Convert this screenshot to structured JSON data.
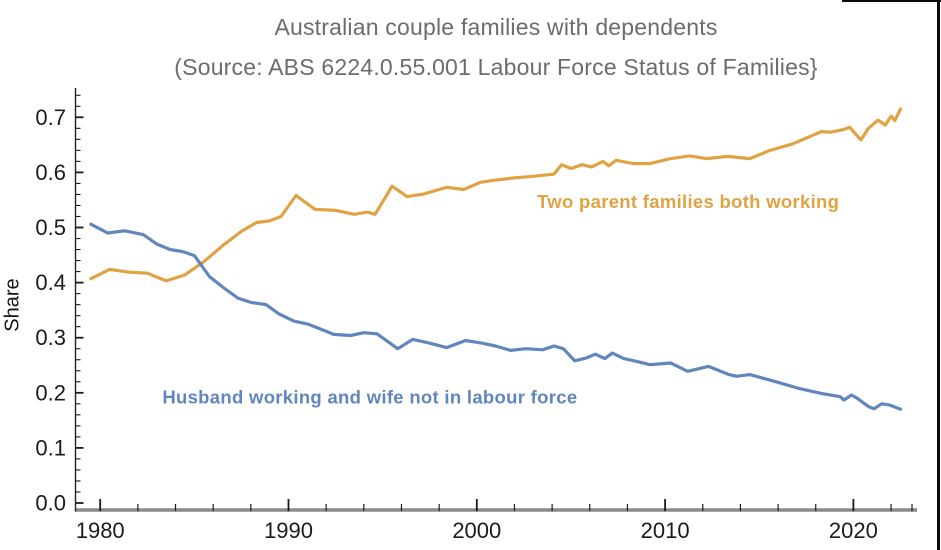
{
  "title": "Australian couple families with dependents",
  "subtitle": "(Source: ABS 6224.0.55.001 Labour Force Status of Families}",
  "colors": {
    "blue_series": "#6186BD",
    "orange_series": "#DFA344",
    "title_grey": "#6C6C6C",
    "axis_line_grey": "#8A8A8A",
    "tick_black": "#1A1A1A"
  },
  "chart_data": {
    "type": "line",
    "title": "Australian couple families with dependents",
    "subtitle": "(Source: ABS 6224.0.55.001 Labour Force Status of Families}",
    "xlabel": "",
    "ylabel": "Share",
    "xlim": [
      1978.6,
      2023.4
    ],
    "ylim": [
      -0.013,
      0.753
    ],
    "grid": false,
    "legend": "inline-annotations",
    "x_major_ticks": [
      1980,
      1990,
      2000,
      2010,
      2020
    ],
    "x_minor_tick_step_years": 2,
    "y_major_ticks": [
      0.0,
      0.1,
      0.2,
      0.3,
      0.4,
      0.5,
      0.6,
      0.7
    ],
    "y_minor_tick_step": 0.02,
    "y_tick_labels": [
      "0.0",
      "0.1",
      "0.2",
      "0.3",
      "0.4",
      "0.5",
      "0.6",
      "0.7"
    ],
    "x_tick_labels": [
      "1980",
      "1990",
      "2000",
      "2010",
      "2020"
    ],
    "series": [
      {
        "name": "Two parent families both working",
        "color": "#DFA344",
        "points": [
          [
            1979.5,
            0.407
          ],
          [
            1980.5,
            0.424
          ],
          [
            1981.5,
            0.419
          ],
          [
            1982.5,
            0.417
          ],
          [
            1983.5,
            0.403
          ],
          [
            1984.5,
            0.414
          ],
          [
            1985.5,
            0.438
          ],
          [
            1986.5,
            0.467
          ],
          [
            1987.5,
            0.493
          ],
          [
            1988.3,
            0.509
          ],
          [
            1989.0,
            0.512
          ],
          [
            1989.6,
            0.52
          ],
          [
            1990.4,
            0.558
          ],
          [
            1991.4,
            0.533
          ],
          [
            1992.5,
            0.531
          ],
          [
            1993.5,
            0.524
          ],
          [
            1994.2,
            0.528
          ],
          [
            1994.6,
            0.524
          ],
          [
            1995.5,
            0.575
          ],
          [
            1996.3,
            0.556
          ],
          [
            1997.2,
            0.561
          ],
          [
            1998.4,
            0.573
          ],
          [
            1999.3,
            0.569
          ],
          [
            2000.2,
            0.582
          ],
          [
            2001.0,
            0.586
          ],
          [
            2002.0,
            0.59
          ],
          [
            2003.0,
            0.593
          ],
          [
            2004.1,
            0.597
          ],
          [
            2004.5,
            0.614
          ],
          [
            2005.0,
            0.607
          ],
          [
            2005.6,
            0.614
          ],
          [
            2006.1,
            0.61
          ],
          [
            2006.7,
            0.62
          ],
          [
            2007.0,
            0.612
          ],
          [
            2007.4,
            0.622
          ],
          [
            2008.3,
            0.616
          ],
          [
            2009.2,
            0.616
          ],
          [
            2010.3,
            0.625
          ],
          [
            2011.3,
            0.63
          ],
          [
            2012.2,
            0.625
          ],
          [
            2013.3,
            0.629
          ],
          [
            2014.5,
            0.625
          ],
          [
            2015.5,
            0.639
          ],
          [
            2016.8,
            0.652
          ],
          [
            2018.3,
            0.674
          ],
          [
            2018.8,
            0.673
          ],
          [
            2019.5,
            0.678
          ],
          [
            2019.8,
            0.682
          ],
          [
            2020.4,
            0.659
          ],
          [
            2020.8,
            0.68
          ],
          [
            2021.3,
            0.695
          ],
          [
            2021.7,
            0.686
          ],
          [
            2022.0,
            0.702
          ],
          [
            2022.2,
            0.694
          ],
          [
            2022.5,
            0.715
          ]
        ]
      },
      {
        "name": "Husband working and wife not in labour force",
        "color": "#6186BD",
        "points": [
          [
            1979.5,
            0.506
          ],
          [
            1980.4,
            0.49
          ],
          [
            1981.3,
            0.494
          ],
          [
            1982.3,
            0.487
          ],
          [
            1983.0,
            0.47
          ],
          [
            1983.7,
            0.46
          ],
          [
            1984.4,
            0.456
          ],
          [
            1985.0,
            0.449
          ],
          [
            1985.8,
            0.411
          ],
          [
            1986.5,
            0.392
          ],
          [
            1987.3,
            0.372
          ],
          [
            1988.0,
            0.364
          ],
          [
            1988.8,
            0.36
          ],
          [
            1989.5,
            0.343
          ],
          [
            1990.3,
            0.33
          ],
          [
            1991.0,
            0.325
          ],
          [
            1991.6,
            0.317
          ],
          [
            1992.4,
            0.306
          ],
          [
            1993.3,
            0.304
          ],
          [
            1994.0,
            0.309
          ],
          [
            1994.7,
            0.307
          ],
          [
            1995.8,
            0.28
          ],
          [
            1996.6,
            0.297
          ],
          [
            1997.4,
            0.291
          ],
          [
            1998.4,
            0.282
          ],
          [
            1999.4,
            0.295
          ],
          [
            2000.3,
            0.29
          ],
          [
            2001.0,
            0.285
          ],
          [
            2001.8,
            0.277
          ],
          [
            2002.6,
            0.28
          ],
          [
            2003.5,
            0.278
          ],
          [
            2004.1,
            0.285
          ],
          [
            2004.6,
            0.28
          ],
          [
            2005.2,
            0.258
          ],
          [
            2005.8,
            0.263
          ],
          [
            2006.3,
            0.27
          ],
          [
            2006.8,
            0.262
          ],
          [
            2007.2,
            0.272
          ],
          [
            2007.8,
            0.262
          ],
          [
            2008.5,
            0.257
          ],
          [
            2009.2,
            0.251
          ],
          [
            2010.3,
            0.254
          ],
          [
            2011.2,
            0.239
          ],
          [
            2012.3,
            0.248
          ],
          [
            2013.4,
            0.233
          ],
          [
            2013.8,
            0.23
          ],
          [
            2014.5,
            0.233
          ],
          [
            2015.9,
            0.22
          ],
          [
            2017.1,
            0.208
          ],
          [
            2018.3,
            0.199
          ],
          [
            2019.3,
            0.193
          ],
          [
            2019.5,
            0.187
          ],
          [
            2019.9,
            0.196
          ],
          [
            2020.2,
            0.19
          ],
          [
            2020.8,
            0.175
          ],
          [
            2021.1,
            0.171
          ],
          [
            2021.5,
            0.18
          ],
          [
            2021.9,
            0.178
          ],
          [
            2022.5,
            0.17
          ]
        ]
      }
    ],
    "annotations": [
      {
        "name": "orange-series-label",
        "text": "Two parent families both working",
        "color": "#DFA344",
        "x": 2003.2,
        "y": 0.535
      },
      {
        "name": "blue-series-label",
        "text": "Husband working and wife not in labour force",
        "color": "#6186BD",
        "x": 1983.3,
        "y": 0.181
      }
    ]
  }
}
